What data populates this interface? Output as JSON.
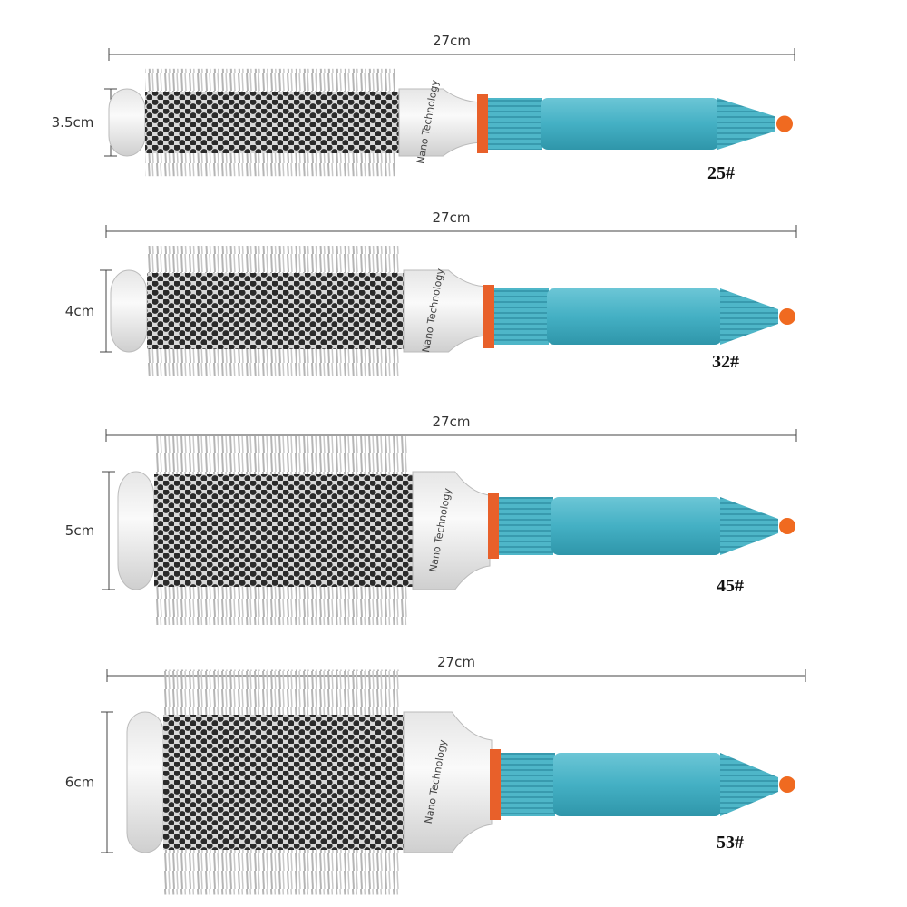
{
  "brushes": [
    {
      "length_label": "27cm",
      "diameter_label": "3.5cm",
      "size_label": "25#",
      "brand": "Nano Technology"
    },
    {
      "length_label": "27cm",
      "diameter_label": "4cm",
      "size_label": "32#",
      "brand": "Nano Technology"
    },
    {
      "length_label": "27cm",
      "diameter_label": "5cm",
      "size_label": "45#",
      "brand": "Nano Technology"
    },
    {
      "length_label": "27cm",
      "diameter_label": "6cm",
      "size_label": "53#",
      "brand": "Nano Technology"
    }
  ]
}
